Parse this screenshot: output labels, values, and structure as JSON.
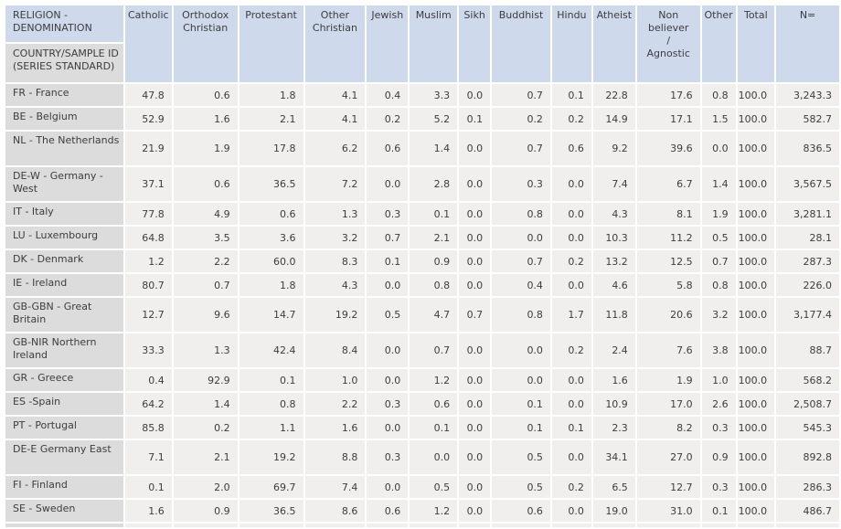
{
  "colors": {
    "header_bg": "#cfd9ec",
    "label_bg": "#dcdcdc",
    "cell_bg": "#f0efed",
    "text": "#3d3d3d",
    "page_bg": "#ffffff"
  },
  "corner": {
    "religion_dimension": "RELIGION -\nDENOMINATION",
    "country_dimension": "COUNTRY/SAMPLE ID\n(SERIES STANDARD)"
  },
  "columns": [
    "Catholic",
    "Orthodox\nChristian",
    "Protestant",
    "Other\nChristian",
    "Jewish",
    "Muslim",
    "Sikh",
    "Buddhist",
    "Hindu",
    "Atheist",
    "Non\nbeliever\n/\nAgnostic",
    "Other",
    "Total",
    "N="
  ],
  "rows": [
    {
      "label": "FR - France",
      "tall": false,
      "values": [
        "47.8",
        "0.6",
        "1.8",
        "4.1",
        "0.4",
        "3.3",
        "0.0",
        "0.7",
        "0.1",
        "22.8",
        "17.6",
        "0.8",
        "100.0",
        "3,243.3"
      ]
    },
    {
      "label": "BE - Belgium",
      "tall": false,
      "values": [
        "52.9",
        "1.6",
        "2.1",
        "4.1",
        "0.2",
        "5.2",
        "0.1",
        "0.2",
        "0.2",
        "14.9",
        "17.1",
        "1.5",
        "100.0",
        "582.7"
      ]
    },
    {
      "label": "NL - The Netherlands",
      "tall": true,
      "values": [
        "21.9",
        "1.9",
        "17.8",
        "6.2",
        "0.6",
        "1.4",
        "0.0",
        "0.7",
        "0.6",
        "9.2",
        "39.6",
        "0.0",
        "100.0",
        "836.5"
      ]
    },
    {
      "label": "DE-W - Germany -\nWest",
      "tall": true,
      "values": [
        "37.1",
        "0.6",
        "36.5",
        "7.2",
        "0.0",
        "2.8",
        "0.0",
        "0.3",
        "0.0",
        "7.4",
        "6.7",
        "1.4",
        "100.0",
        "3,567.5"
      ]
    },
    {
      "label": "IT - Italy",
      "tall": false,
      "values": [
        "77.8",
        "4.9",
        "0.6",
        "1.3",
        "0.3",
        "0.1",
        "0.0",
        "0.8",
        "0.0",
        "4.3",
        "8.1",
        "1.9",
        "100.0",
        "3,281.1"
      ]
    },
    {
      "label": "LU - Luxembourg",
      "tall": false,
      "values": [
        "64.8",
        "3.5",
        "3.6",
        "3.2",
        "0.7",
        "2.1",
        "0.0",
        "0.0",
        "0.0",
        "10.3",
        "11.2",
        "0.5",
        "100.0",
        "28.1"
      ]
    },
    {
      "label": "DK - Denmark",
      "tall": false,
      "values": [
        "1.2",
        "2.2",
        "60.0",
        "8.3",
        "0.1",
        "0.9",
        "0.0",
        "0.7",
        "0.2",
        "13.2",
        "12.5",
        "0.7",
        "100.0",
        "287.3"
      ]
    },
    {
      "label": "IE - Ireland",
      "tall": false,
      "values": [
        "80.7",
        "0.7",
        "1.8",
        "4.3",
        "0.0",
        "0.8",
        "0.0",
        "0.4",
        "0.0",
        "4.6",
        "5.8",
        "0.8",
        "100.0",
        "226.0"
      ]
    },
    {
      "label": "GB-GBN - Great\nBritain",
      "tall": true,
      "values": [
        "12.7",
        "9.6",
        "14.7",
        "19.2",
        "0.5",
        "4.7",
        "0.7",
        "0.8",
        "1.7",
        "11.8",
        "20.6",
        "3.2",
        "100.0",
        "3,177.4"
      ]
    },
    {
      "label": "GB-NIR Northern\nIreland",
      "tall": true,
      "values": [
        "33.3",
        "1.3",
        "42.4",
        "8.4",
        "0.0",
        "0.7",
        "0.0",
        "0.0",
        "0.2",
        "2.4",
        "7.6",
        "3.8",
        "100.0",
        "88.7"
      ]
    },
    {
      "label": "GR - Greece",
      "tall": false,
      "values": [
        "0.4",
        "92.9",
        "0.1",
        "1.0",
        "0.0",
        "1.2",
        "0.0",
        "0.0",
        "0.0",
        "1.6",
        "1.9",
        "1.0",
        "100.0",
        "568.2"
      ]
    },
    {
      "label": "ES -Spain",
      "tall": false,
      "values": [
        "64.2",
        "1.4",
        "0.8",
        "2.2",
        "0.3",
        "0.6",
        "0.0",
        "0.1",
        "0.0",
        "10.9",
        "17.0",
        "2.6",
        "100.0",
        "2,508.7"
      ]
    },
    {
      "label": "PT - Portugal",
      "tall": false,
      "values": [
        "85.8",
        "0.2",
        "1.1",
        "1.6",
        "0.0",
        "0.1",
        "0.0",
        "0.1",
        "0.1",
        "2.3",
        "8.2",
        "0.3",
        "100.0",
        "545.3"
      ]
    },
    {
      "label": "DE-E Germany East",
      "tall": true,
      "values": [
        "7.1",
        "2.1",
        "19.2",
        "8.8",
        "0.3",
        "0.0",
        "0.0",
        "0.5",
        "0.0",
        "34.1",
        "27.0",
        "0.9",
        "100.0",
        "892.8"
      ]
    },
    {
      "label": "FI - Finland",
      "tall": false,
      "values": [
        "0.1",
        "2.0",
        "69.7",
        "7.4",
        "0.0",
        "0.5",
        "0.0",
        "0.5",
        "0.2",
        "6.5",
        "12.7",
        "0.3",
        "100.0",
        "286.3"
      ]
    },
    {
      "label": "SE - Sweden",
      "tall": false,
      "values": [
        "1.6",
        "0.9",
        "36.5",
        "8.6",
        "0.6",
        "1.2",
        "0.0",
        "0.6",
        "0.0",
        "19.0",
        "31.0",
        "0.1",
        "100.0",
        "486.7"
      ]
    }
  ]
}
